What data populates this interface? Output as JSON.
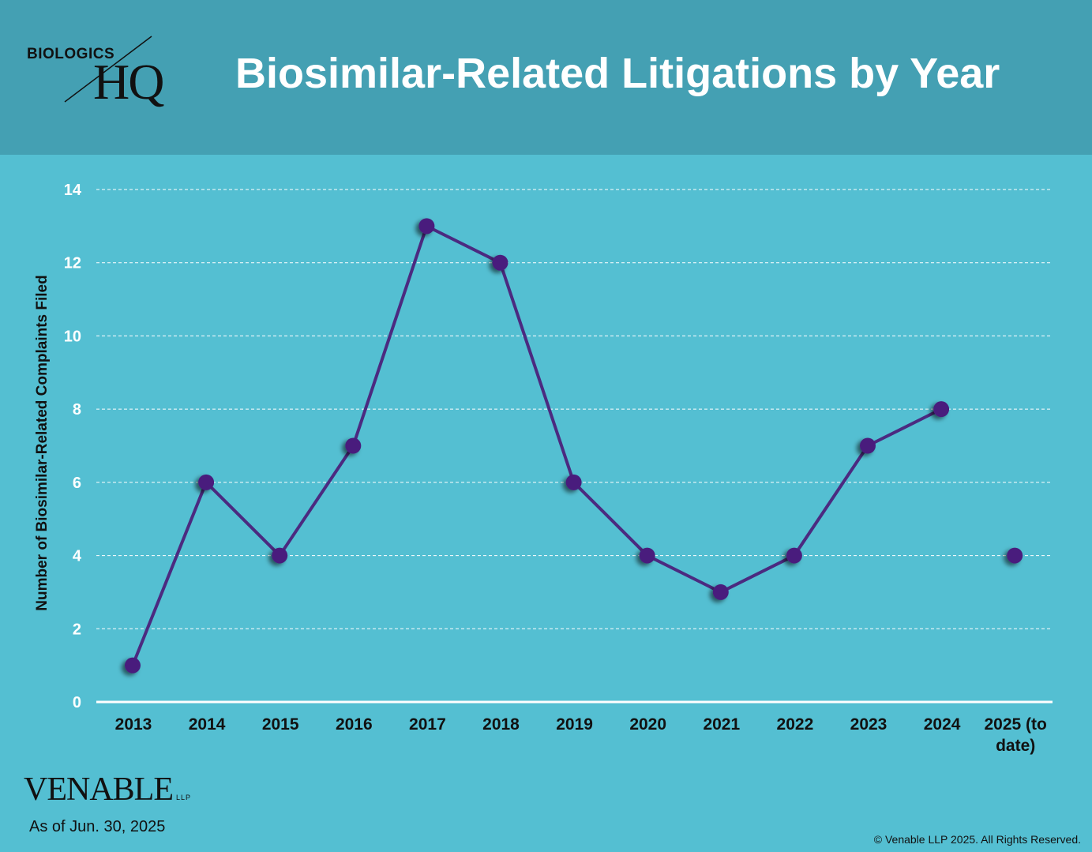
{
  "header": {
    "logo_top": "BIOLOGICS",
    "logo_main": "HQ",
    "title": "Biosimilar-Related Litigations by Year"
  },
  "footer": {
    "brand": "VENABLE",
    "brand_suffix": "LLP",
    "as_of": "As of Jun. 30, 2025",
    "copyright": "© Venable LLP 2025. All Rights Reserved."
  },
  "colors": {
    "background": "#54bfd2",
    "header": "#44a0b3",
    "line": "#4b2a80",
    "marker": "#4a1f7d",
    "grid": "#ffffff"
  },
  "chart_data": {
    "type": "line",
    "title": "Biosimilar-Related Litigations by Year",
    "xlabel": "",
    "ylabel": "Number of Biosimilar-Related Complaints Filed",
    "categories": [
      "2013",
      "2014",
      "2015",
      "2016",
      "2017",
      "2018",
      "2019",
      "2020",
      "2021",
      "2022",
      "2023",
      "2024",
      "2025 (to date)"
    ],
    "series": [
      {
        "values": [
          1,
          6,
          4,
          7,
          13,
          12,
          6,
          4,
          3,
          4,
          7,
          8,
          4
        ],
        "connected_through_index": 11
      }
    ],
    "ylim": [
      0,
      14
    ],
    "yticks": [
      0,
      2,
      4,
      6,
      8,
      10,
      12,
      14
    ],
    "grid": "horizontal dashed",
    "legend": "none"
  }
}
